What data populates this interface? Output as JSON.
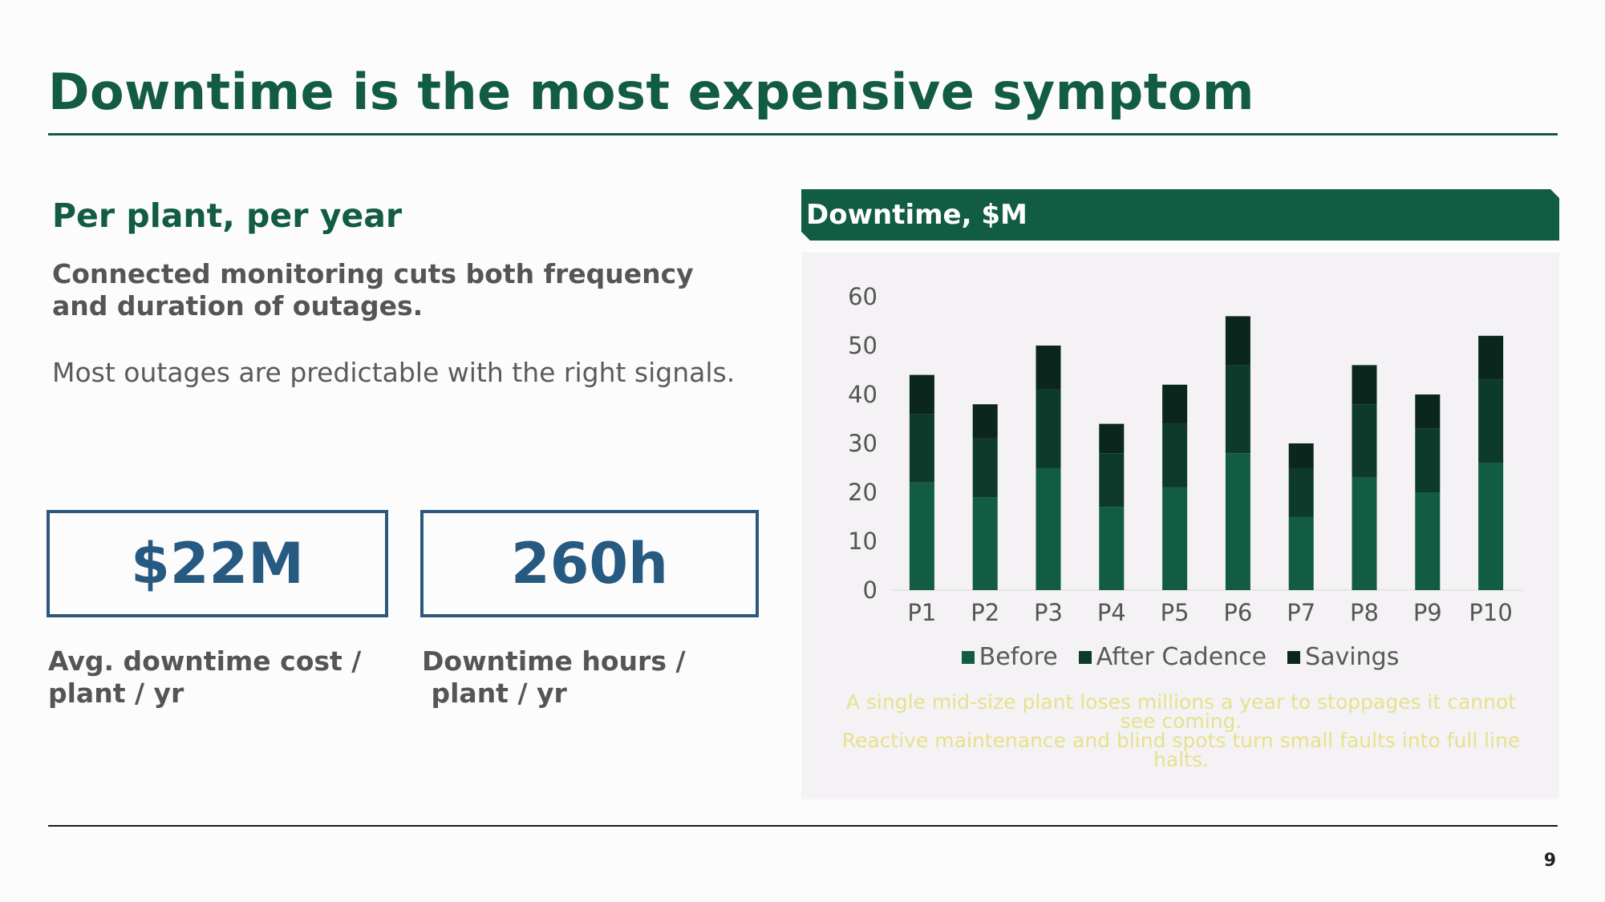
{
  "slide": {
    "title": "Downtime is the most expensive symptom",
    "subtitle": "Per plant, per year",
    "lead": "Connected monitoring cuts both frequency and duration of outages.",
    "note": "Most outages are predictable with the right signals.",
    "page_number": "9"
  },
  "kpis": [
    {
      "value": "$22M",
      "label": "Avg. downtime cost /\nplant / yr"
    },
    {
      "value": "260h",
      "label": "Downtime hours /\n plant / yr"
    }
  ],
  "chart_header": "Downtime, $M",
  "caption": [
    "A single mid-size plant loses millions a year to stoppages it cannot see coming.",
    "Reactive maintenance and blind spots turn small faults into full line halts."
  ],
  "colors": {
    "brand_green": "#115c42",
    "kpi_blue": "#275a80",
    "before": "#115c42",
    "after": "#0d3a2b",
    "savings": "#0a261d",
    "caption": "#e6e18e"
  },
  "chart_data": {
    "type": "bar",
    "stacked": true,
    "title": "Downtime, $M",
    "categories": [
      "P1",
      "P2",
      "P3",
      "P4",
      "P5",
      "P6",
      "P7",
      "P8",
      "P9",
      "P10"
    ],
    "series": [
      {
        "name": "Before",
        "values": [
          22,
          19,
          25,
          17,
          21,
          28,
          15,
          23,
          20,
          26
        ]
      },
      {
        "name": "After Cadence",
        "values": [
          14,
          12,
          16,
          11,
          13,
          18,
          10,
          15,
          13,
          17
        ]
      },
      {
        "name": "Savings",
        "values": [
          8,
          7,
          9,
          6,
          8,
          10,
          5,
          8,
          7,
          9
        ]
      }
    ],
    "ylim": [
      0,
      60
    ],
    "yticks": [
      0,
      10,
      20,
      30,
      40,
      50,
      60
    ],
    "grid": false,
    "legend": "bottom"
  }
}
